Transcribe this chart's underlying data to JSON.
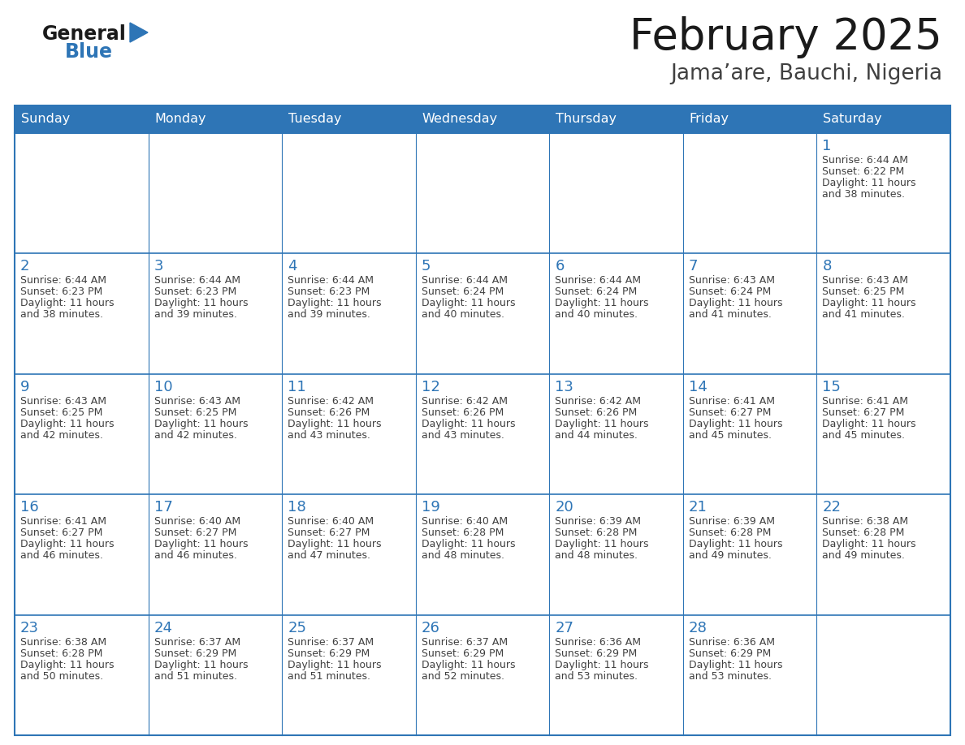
{
  "title": "February 2025",
  "subtitle": "Jama’are, Bauchi, Nigeria",
  "days_of_week": [
    "Sunday",
    "Monday",
    "Tuesday",
    "Wednesday",
    "Thursday",
    "Friday",
    "Saturday"
  ],
  "header_bg": "#2e75b6",
  "header_text": "#ffffff",
  "border_color": "#2e75b6",
  "day_number_color": "#2e75b6",
  "cell_text_color": "#404040",
  "title_color": "#1a1a1a",
  "subtitle_color": "#404040",
  "logo_general_color": "#1a1a1a",
  "logo_blue_color": "#2e75b6",
  "calendar_data": [
    [
      null,
      null,
      null,
      null,
      null,
      null,
      {
        "day": 1,
        "sunrise": "6:44 AM",
        "sunset": "6:22 PM",
        "daylight": "11 hours and 38 minutes."
      }
    ],
    [
      {
        "day": 2,
        "sunrise": "6:44 AM",
        "sunset": "6:23 PM",
        "daylight": "11 hours and 38 minutes."
      },
      {
        "day": 3,
        "sunrise": "6:44 AM",
        "sunset": "6:23 PM",
        "daylight": "11 hours and 39 minutes."
      },
      {
        "day": 4,
        "sunrise": "6:44 AM",
        "sunset": "6:23 PM",
        "daylight": "11 hours and 39 minutes."
      },
      {
        "day": 5,
        "sunrise": "6:44 AM",
        "sunset": "6:24 PM",
        "daylight": "11 hours and 40 minutes."
      },
      {
        "day": 6,
        "sunrise": "6:44 AM",
        "sunset": "6:24 PM",
        "daylight": "11 hours and 40 minutes."
      },
      {
        "day": 7,
        "sunrise": "6:43 AM",
        "sunset": "6:24 PM",
        "daylight": "11 hours and 41 minutes."
      },
      {
        "day": 8,
        "sunrise": "6:43 AM",
        "sunset": "6:25 PM",
        "daylight": "11 hours and 41 minutes."
      }
    ],
    [
      {
        "day": 9,
        "sunrise": "6:43 AM",
        "sunset": "6:25 PM",
        "daylight": "11 hours and 42 minutes."
      },
      {
        "day": 10,
        "sunrise": "6:43 AM",
        "sunset": "6:25 PM",
        "daylight": "11 hours and 42 minutes."
      },
      {
        "day": 11,
        "sunrise": "6:42 AM",
        "sunset": "6:26 PM",
        "daylight": "11 hours and 43 minutes."
      },
      {
        "day": 12,
        "sunrise": "6:42 AM",
        "sunset": "6:26 PM",
        "daylight": "11 hours and 43 minutes."
      },
      {
        "day": 13,
        "sunrise": "6:42 AM",
        "sunset": "6:26 PM",
        "daylight": "11 hours and 44 minutes."
      },
      {
        "day": 14,
        "sunrise": "6:41 AM",
        "sunset": "6:27 PM",
        "daylight": "11 hours and 45 minutes."
      },
      {
        "day": 15,
        "sunrise": "6:41 AM",
        "sunset": "6:27 PM",
        "daylight": "11 hours and 45 minutes."
      }
    ],
    [
      {
        "day": 16,
        "sunrise": "6:41 AM",
        "sunset": "6:27 PM",
        "daylight": "11 hours and 46 minutes."
      },
      {
        "day": 17,
        "sunrise": "6:40 AM",
        "sunset": "6:27 PM",
        "daylight": "11 hours and 46 minutes."
      },
      {
        "day": 18,
        "sunrise": "6:40 AM",
        "sunset": "6:27 PM",
        "daylight": "11 hours and 47 minutes."
      },
      {
        "day": 19,
        "sunrise": "6:40 AM",
        "sunset": "6:28 PM",
        "daylight": "11 hours and 48 minutes."
      },
      {
        "day": 20,
        "sunrise": "6:39 AM",
        "sunset": "6:28 PM",
        "daylight": "11 hours and 48 minutes."
      },
      {
        "day": 21,
        "sunrise": "6:39 AM",
        "sunset": "6:28 PM",
        "daylight": "11 hours and 49 minutes."
      },
      {
        "day": 22,
        "sunrise": "6:38 AM",
        "sunset": "6:28 PM",
        "daylight": "11 hours and 49 minutes."
      }
    ],
    [
      {
        "day": 23,
        "sunrise": "6:38 AM",
        "sunset": "6:28 PM",
        "daylight": "11 hours and 50 minutes."
      },
      {
        "day": 24,
        "sunrise": "6:37 AM",
        "sunset": "6:29 PM",
        "daylight": "11 hours and 51 minutes."
      },
      {
        "day": 25,
        "sunrise": "6:37 AM",
        "sunset": "6:29 PM",
        "daylight": "11 hours and 51 minutes."
      },
      {
        "day": 26,
        "sunrise": "6:37 AM",
        "sunset": "6:29 PM",
        "daylight": "11 hours and 52 minutes."
      },
      {
        "day": 27,
        "sunrise": "6:36 AM",
        "sunset": "6:29 PM",
        "daylight": "11 hours and 53 minutes."
      },
      {
        "day": 28,
        "sunrise": "6:36 AM",
        "sunset": "6:29 PM",
        "daylight": "11 hours and 53 minutes."
      },
      null
    ]
  ],
  "fig_width": 11.88,
  "fig_height": 9.18,
  "dpi": 100
}
